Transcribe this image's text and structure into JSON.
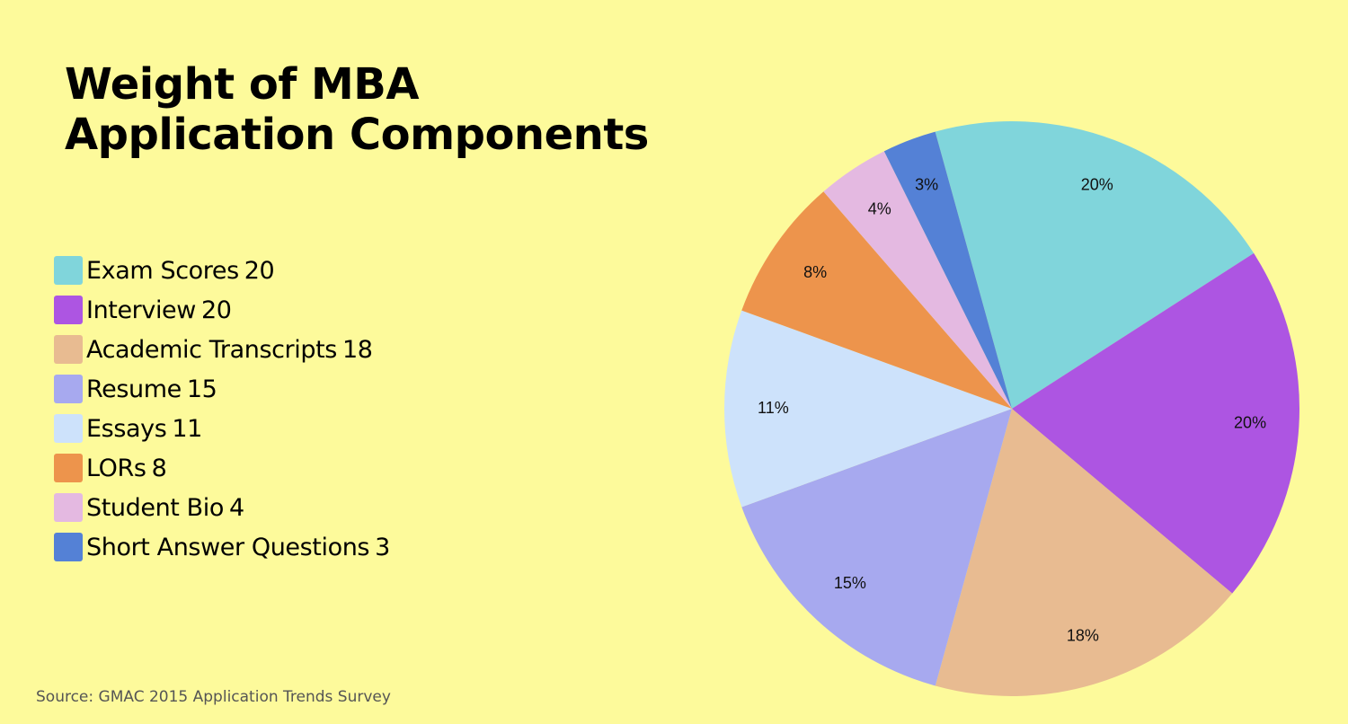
{
  "title_line1": "Weight of MBA",
  "title_line2": "Application Components",
  "source": "Source: GMAC 2015 Application Trends Survey",
  "chart_data": {
    "type": "pie",
    "title": "Weight of MBA Application Components",
    "legend_position": "left",
    "categories": [
      "Exam Scores",
      "Interview",
      "Academic Transcripts",
      "Resume",
      "Essays",
      "LORs",
      "Student Bio",
      "Short Answer Questions"
    ],
    "values": [
      20,
      20,
      18,
      15,
      11,
      8,
      4,
      3
    ],
    "labels": [
      "20%",
      "20%",
      "18%",
      "15%",
      "11%",
      "8%",
      "4%",
      "3%"
    ],
    "colors": [
      "#80d5db",
      "#ad55e2",
      "#e8bb91",
      "#a7a9ef",
      "#cde2fb",
      "#ed944c",
      "#e4b9e1",
      "#5481d6"
    ]
  }
}
